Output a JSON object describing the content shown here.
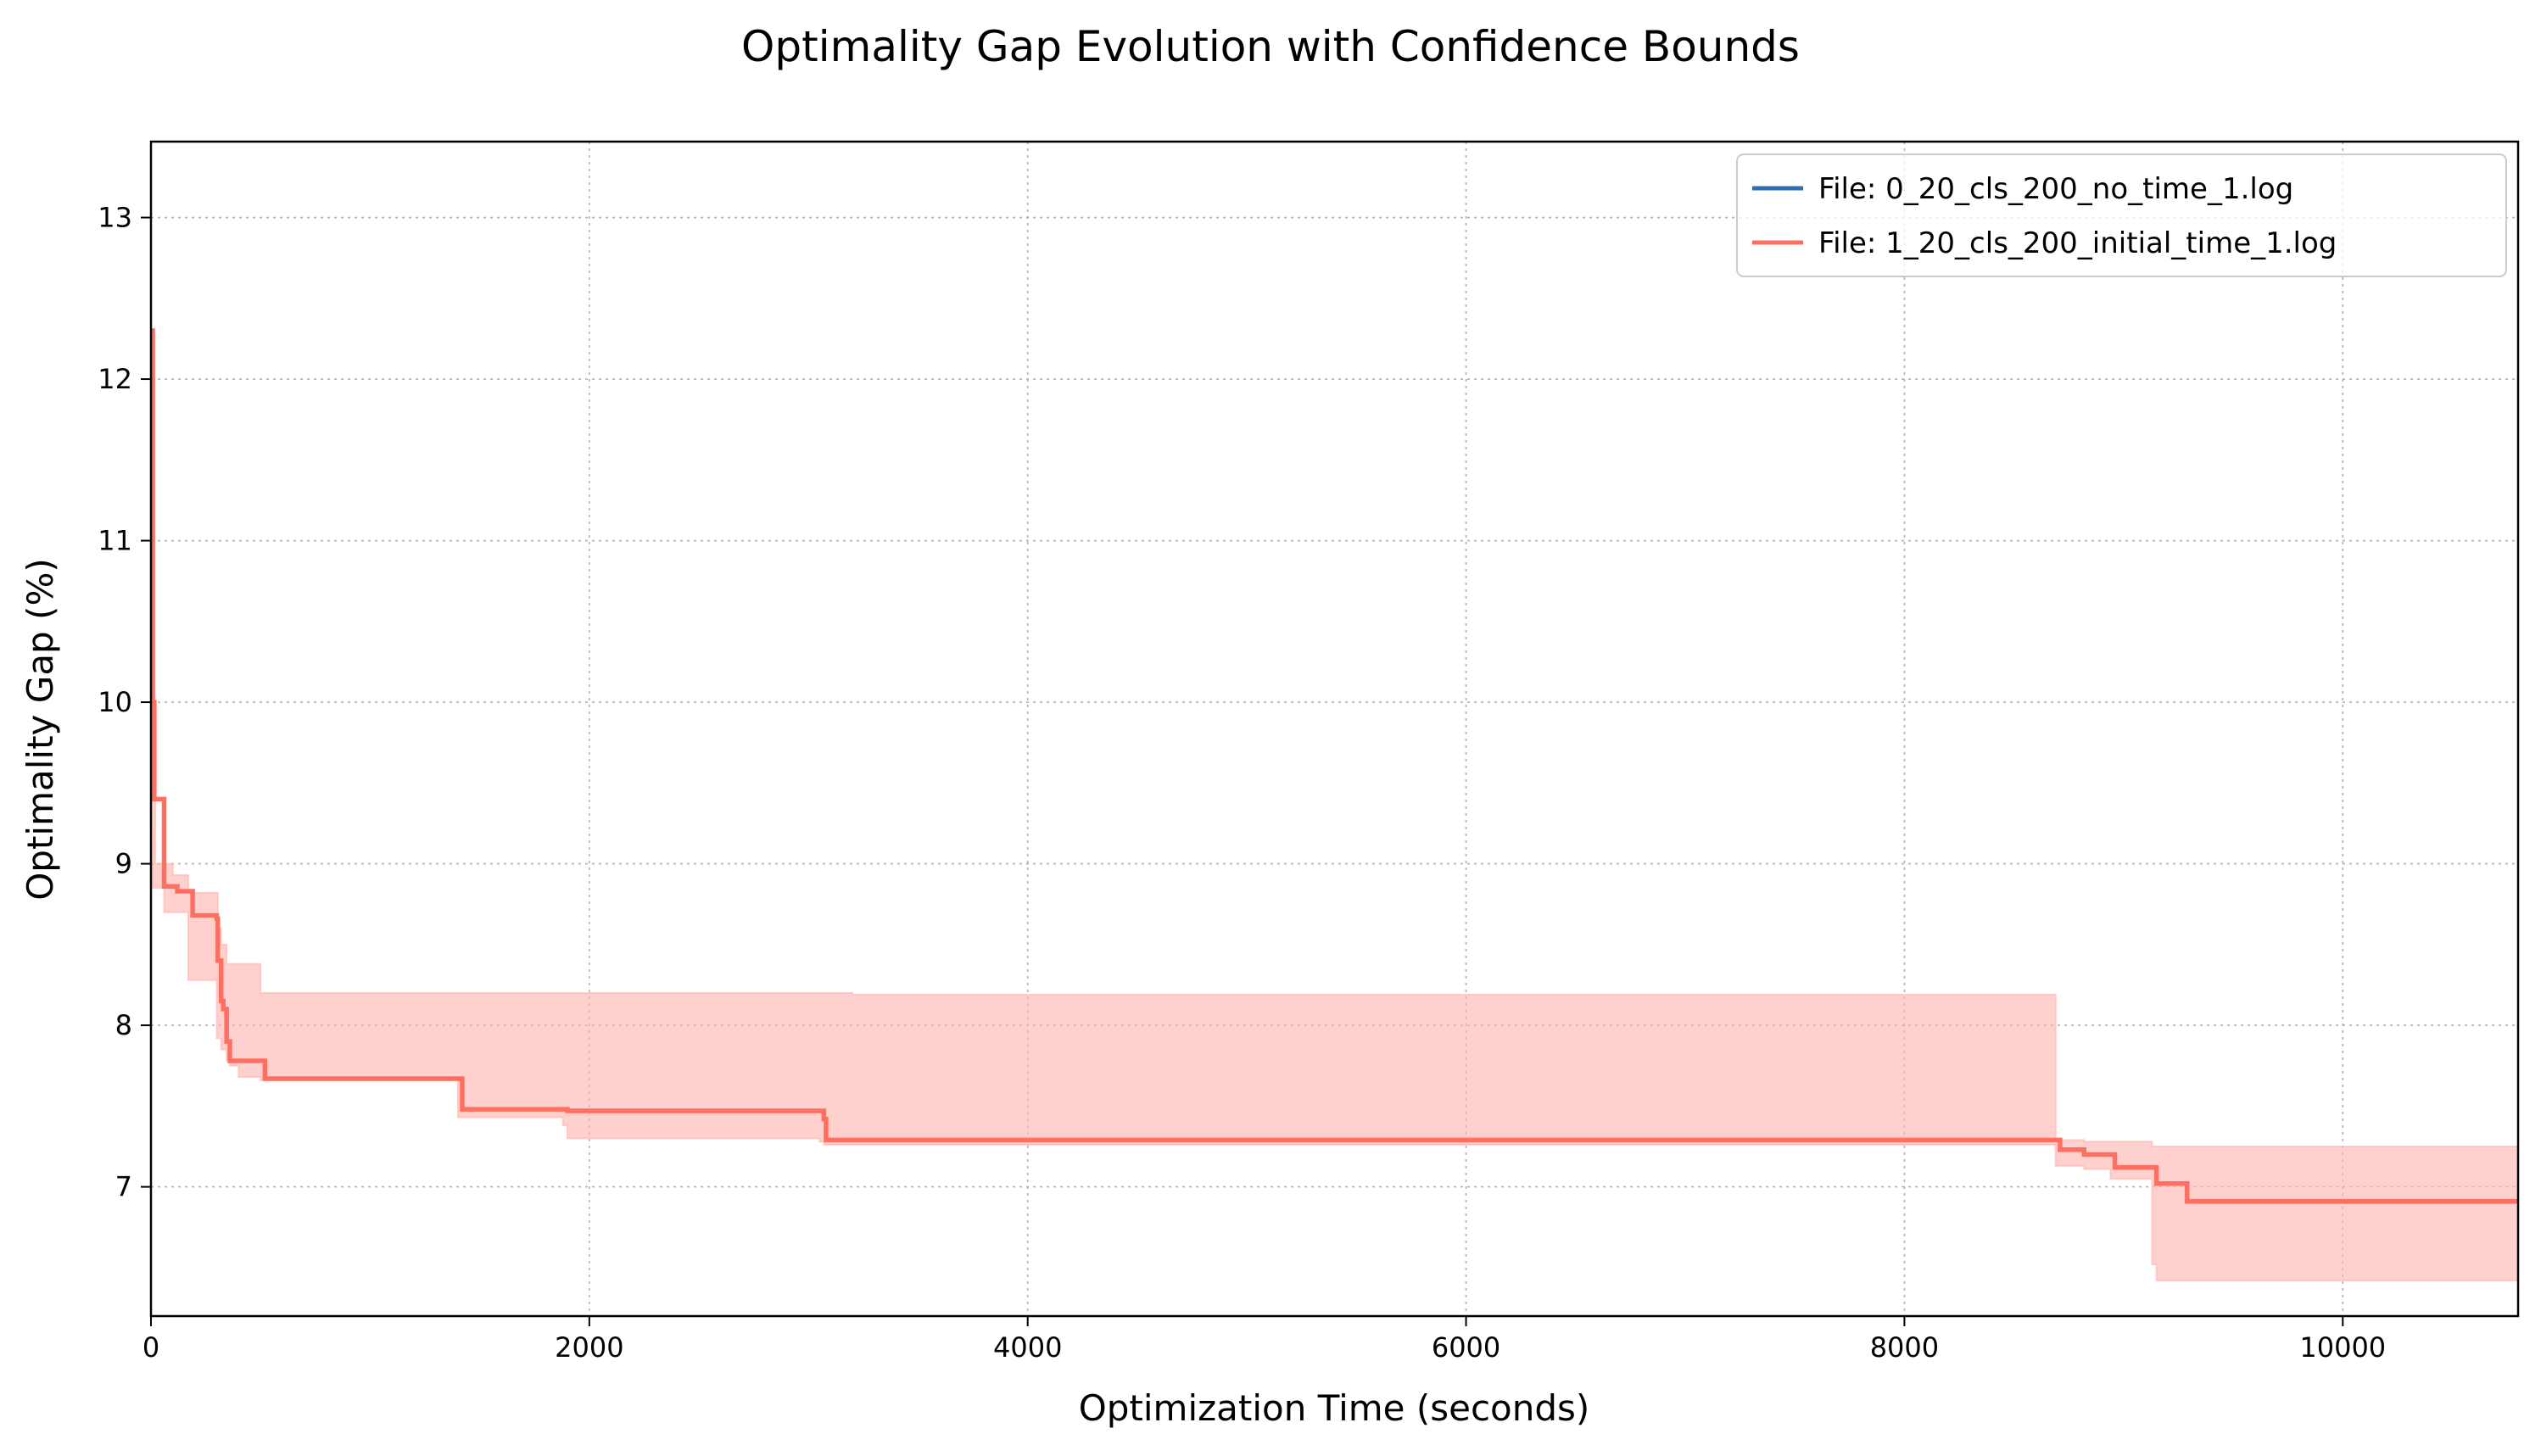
{
  "chart_data": {
    "type": "line",
    "title": "Optimality Gap Evolution with Confidence Bounds",
    "xlabel": "Optimization Time (seconds)",
    "ylabel": "Optimality Gap (%)",
    "xlim": [
      0,
      10800
    ],
    "ylim": [
      6.2,
      13.47
    ],
    "xticks": [
      0,
      2000,
      4000,
      6000,
      8000,
      10000
    ],
    "xtick_labels": [
      "0",
      "2000",
      "4000",
      "6000",
      "8000",
      "10000"
    ],
    "yticks": [
      7,
      8,
      9,
      10,
      11,
      12,
      13
    ],
    "ytick_labels": [
      "7",
      "8",
      "9",
      "10",
      "11",
      "12",
      "13"
    ],
    "grid": true,
    "legend_position": "top-right",
    "series": [
      {
        "name": "File: 0_20_cls_200_no_time_1.log",
        "color": "#2f6db5",
        "x": [],
        "y": []
      },
      {
        "name": "File: 1_20_cls_200_initial_time_1.log",
        "color": "#ff6f61",
        "band_color": "#ffb3ad",
        "x": [
          0,
          8,
          15,
          20,
          50,
          60,
          100,
          120,
          170,
          190,
          290,
          300,
          305,
          320,
          330,
          345,
          360,
          400,
          500,
          520,
          1400,
          1420,
          1880,
          1900,
          3050,
          3070,
          3080,
          3200,
          8690,
          8710,
          8800,
          8820,
          8940,
          8960,
          9130,
          9150,
          9270,
          9290,
          10800
        ],
        "y": [
          12.3,
          10.0,
          9.4,
          9.4,
          9.4,
          8.86,
          8.86,
          8.83,
          8.83,
          8.68,
          8.68,
          8.66,
          8.4,
          8.15,
          8.1,
          7.9,
          7.78,
          7.78,
          7.78,
          7.67,
          7.67,
          7.48,
          7.48,
          7.47,
          7.47,
          7.42,
          7.29,
          7.29,
          7.29,
          7.23,
          7.23,
          7.2,
          7.2,
          7.12,
          7.12,
          7.02,
          7.02,
          6.91,
          6.91
        ],
        "upper": [
          12.3,
          10.0,
          9.4,
          9.0,
          9.0,
          9.0,
          8.93,
          8.93,
          8.82,
          8.82,
          8.82,
          8.82,
          8.6,
          8.5,
          8.5,
          8.38,
          8.38,
          8.38,
          8.2,
          8.2,
          8.2,
          8.2,
          8.2,
          8.2,
          8.2,
          8.2,
          8.2,
          8.19,
          7.29,
          7.29,
          7.29,
          7.28,
          7.28,
          7.28,
          7.25,
          7.25,
          7.25,
          7.25,
          7.25
        ],
        "lower": [
          9.2,
          8.85,
          8.85,
          8.85,
          8.85,
          8.7,
          8.7,
          8.7,
          8.28,
          8.28,
          8.28,
          7.92,
          7.92,
          7.85,
          7.85,
          7.78,
          7.75,
          7.68,
          7.66,
          7.66,
          7.43,
          7.43,
          7.38,
          7.3,
          7.28,
          7.26,
          7.26,
          7.26,
          7.13,
          7.13,
          7.13,
          7.11,
          7.05,
          7.05,
          6.52,
          6.42,
          6.42,
          6.42,
          6.42
        ]
      }
    ]
  }
}
